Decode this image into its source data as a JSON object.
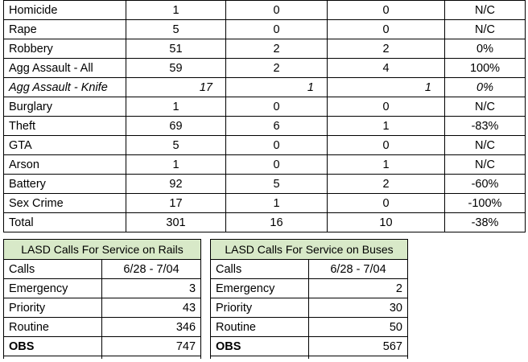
{
  "crime_table": {
    "rows": [
      {
        "type": "Homicide",
        "v1": "1",
        "v2": "0",
        "v3": "0",
        "pct": "N/C"
      },
      {
        "type": "Rape",
        "v1": "5",
        "v2": "0",
        "v3": "0",
        "pct": "N/C"
      },
      {
        "type": "Robbery",
        "v1": "51",
        "v2": "2",
        "v3": "2",
        "pct": "0%"
      },
      {
        "type": "Agg Assault - All",
        "v1": "59",
        "v2": "2",
        "v3": "4",
        "pct": "100%"
      },
      {
        "type": "Agg Assault - Knife",
        "v1": "17",
        "v2": "1",
        "v3": "1",
        "pct": "0%"
      },
      {
        "type": "Burglary",
        "v1": "1",
        "v2": "0",
        "v3": "0",
        "pct": "N/C"
      },
      {
        "type": "Theft",
        "v1": "69",
        "v2": "6",
        "v3": "1",
        "pct": "-83%"
      },
      {
        "type": "GTA",
        "v1": "5",
        "v2": "0",
        "v3": "0",
        "pct": "N/C"
      },
      {
        "type": "Arson",
        "v1": "1",
        "v2": "0",
        "v3": "1",
        "pct": "N/C"
      },
      {
        "type": "Battery",
        "v1": "92",
        "v2": "5",
        "v3": "2",
        "pct": "-60%"
      },
      {
        "type": "Sex Crime",
        "v1": "17",
        "v2": "1",
        "v3": "0",
        "pct": "-100%"
      },
      {
        "type": "Total",
        "v1": "301",
        "v2": "16",
        "v3": "10",
        "pct": "-38%"
      }
    ]
  },
  "rails_calls": {
    "title": "LASD Calls For Service on Rails",
    "col1": "Calls",
    "col2": "6/28 - 7/04",
    "rows": [
      {
        "label": "Emergency",
        "value": "3"
      },
      {
        "label": "Priority",
        "value": "43"
      },
      {
        "label": "Routine",
        "value": "346"
      },
      {
        "label": "OBS",
        "value": "747"
      }
    ]
  },
  "buses_calls": {
    "title": "LASD Calls For Service on Buses",
    "col1": "Calls",
    "col2": "6/28 - 7/04",
    "rows": [
      {
        "label": "Emergency",
        "value": "2"
      },
      {
        "label": "Priority",
        "value": "30"
      },
      {
        "label": "Routine",
        "value": "50"
      },
      {
        "label": "OBS",
        "value": "567"
      }
    ]
  }
}
